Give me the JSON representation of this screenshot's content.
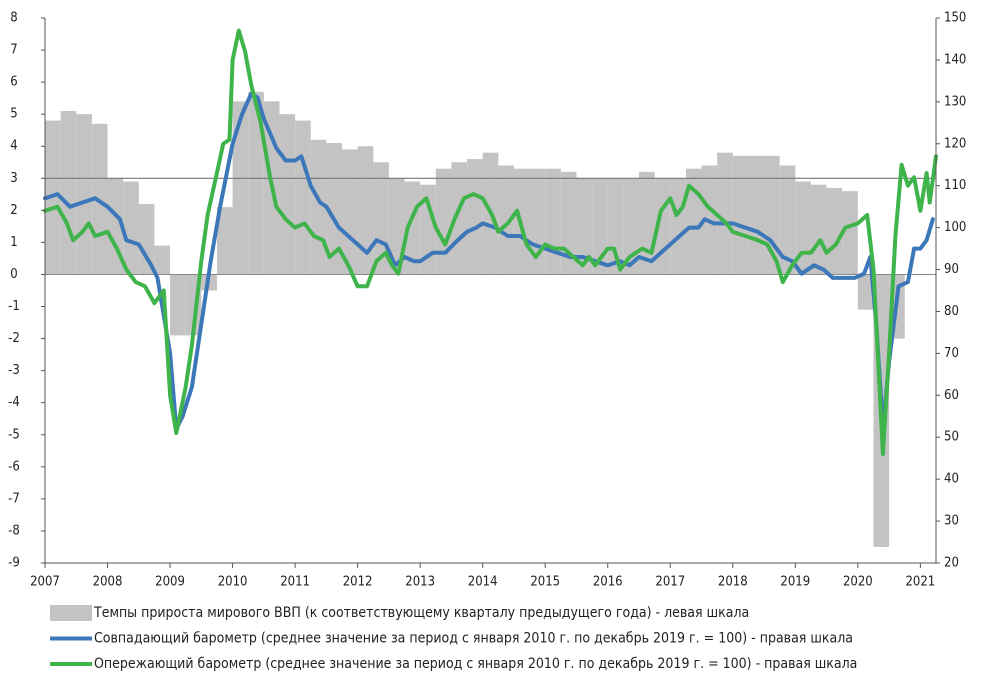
{
  "chart_data": {
    "type": "combo",
    "xlim": [
      2007,
      2021.25
    ],
    "xticks": [
      2007,
      2008,
      2009,
      2010,
      2011,
      2012,
      2013,
      2014,
      2015,
      2016,
      2017,
      2018,
      2019,
      2020,
      2021
    ],
    "ylim": [
      -9,
      8
    ],
    "yticks": [
      -9,
      -8,
      -7,
      -6,
      -5,
      -4,
      -3,
      -2,
      -1,
      0,
      1,
      2,
      3,
      4,
      5,
      6,
      7,
      8
    ],
    "y2lim": [
      20,
      150
    ],
    "y2ticks": [
      20,
      30,
      40,
      50,
      60,
      70,
      80,
      90,
      100,
      110,
      120,
      130,
      140,
      150
    ],
    "hline": 3,
    "grid": false,
    "legend": "bottom",
    "series": [
      {
        "name": "Темпы прироста мирового ВВП (к соответствующему кварталу предыдущего года) - левая шкала",
        "type": "bar",
        "color": "#c3c3c3",
        "x": [
          2007,
          2007.25,
          2007.5,
          2007.75,
          2008,
          2008.25,
          2008.5,
          2008.75,
          2009,
          2009.25,
          2009.5,
          2009.75,
          2010,
          2010.25,
          2010.5,
          2010.75,
          2011,
          2011.25,
          2011.5,
          2011.75,
          2012,
          2012.25,
          2012.5,
          2012.75,
          2013,
          2013.25,
          2013.5,
          2013.75,
          2014,
          2014.25,
          2014.5,
          2014.75,
          2015,
          2015.25,
          2015.5,
          2015.75,
          2016,
          2016.25,
          2016.5,
          2016.75,
          2017,
          2017.25,
          2017.5,
          2017.75,
          2018,
          2018.25,
          2018.5,
          2018.75,
          2019,
          2019.25,
          2019.5,
          2019.75,
          2020,
          2020.25,
          2020.5
        ],
        "values": [
          4.8,
          5.1,
          5.0,
          4.7,
          3.0,
          2.9,
          2.2,
          0.9,
          -1.9,
          -1.9,
          -0.5,
          2.1,
          5.4,
          5.7,
          5.4,
          5.0,
          4.8,
          4.2,
          4.1,
          3.9,
          4.0,
          3.5,
          3.0,
          2.9,
          2.8,
          3.3,
          3.5,
          3.6,
          3.8,
          3.4,
          3.3,
          3.3,
          3.3,
          3.2,
          3.0,
          3.0,
          3.0,
          3.0,
          3.2,
          3.0,
          3.0,
          3.3,
          3.4,
          3.8,
          3.7,
          3.7,
          3.7,
          3.4,
          2.9,
          2.8,
          2.7,
          2.6,
          -1.1,
          -8.5,
          -2.0
        ]
      },
      {
        "name": "Совпадающий барометр (среднее значение за период с января 2010 г. по декабрь 2019 г. = 100) - правая шкала",
        "type": "line",
        "axis": "y2",
        "color": "#3b77b9",
        "x": [
          2007,
          2007.2,
          2007.4,
          2007.6,
          2007.8,
          2008,
          2008.2,
          2008.3,
          2008.5,
          2008.7,
          2008.8,
          2009,
          2009.1,
          2009.2,
          2009.35,
          2009.5,
          2009.65,
          2009.8,
          2010,
          2010.15,
          2010.3,
          2010.4,
          2010.5,
          2010.7,
          2010.85,
          2011,
          2011.1,
          2011.25,
          2011.4,
          2011.5,
          2011.7,
          2011.85,
          2012,
          2012.15,
          2012.3,
          2012.45,
          2012.6,
          2012.75,
          2012.9,
          2013,
          2013.2,
          2013.4,
          2013.6,
          2013.75,
          2013.9,
          2014,
          2014.2,
          2014.4,
          2014.6,
          2014.8,
          2015,
          2015.2,
          2015.4,
          2015.6,
          2015.8,
          2016,
          2016.2,
          2016.35,
          2016.5,
          2016.7,
          2016.85,
          2017,
          2017.15,
          2017.3,
          2017.45,
          2017.55,
          2017.7,
          2017.9,
          2018,
          2018.2,
          2018.4,
          2018.6,
          2018.8,
          2018.95,
          2019.1,
          2019.3,
          2019.45,
          2019.6,
          2019.8,
          2019.95,
          2020.1,
          2020.2,
          2020.3,
          2020.4,
          2020.5,
          2020.65,
          2020.8,
          2020.9,
          2021,
          2021.1,
          2021.2
        ],
        "values": [
          107,
          108,
          105,
          106,
          107,
          105,
          102,
          97,
          96,
          91,
          88,
          70,
          52,
          55,
          62,
          77,
          92,
          105,
          120,
          127,
          132,
          131,
          126,
          119,
          116,
          116,
          117,
          110,
          106,
          105,
          100,
          98,
          96,
          94,
          97,
          96,
          91,
          93,
          92,
          92,
          94,
          94,
          97,
          99,
          100,
          101,
          100,
          98,
          98,
          96,
          95,
          94,
          93,
          93,
          92,
          91,
          92,
          91,
          93,
          92,
          94,
          96,
          98,
          100,
          100,
          102,
          101,
          101,
          101,
          100,
          99,
          97,
          93,
          92,
          89,
          91,
          90,
          88,
          88,
          88,
          89,
          93,
          76,
          52,
          68,
          86,
          87,
          95,
          95,
          97,
          102
        ]
      },
      {
        "name": "Опережающий барометр (среднее значение за период с января 2010 г. по декабрь 2019 г. = 100)  - правая шкала",
        "type": "line",
        "axis": "y2",
        "color": "#3fb44b",
        "x": [
          2007,
          2007.2,
          2007.35,
          2007.45,
          2007.6,
          2007.7,
          2007.8,
          2008,
          2008.15,
          2008.3,
          2008.45,
          2008.6,
          2008.75,
          2008.9,
          2009,
          2009.1,
          2009.25,
          2009.35,
          2009.5,
          2009.6,
          2009.75,
          2009.85,
          2009.95,
          2010,
          2010.1,
          2010.2,
          2010.3,
          2010.45,
          2010.6,
          2010.7,
          2010.85,
          2011,
          2011.15,
          2011.3,
          2011.45,
          2011.55,
          2011.7,
          2011.85,
          2012,
          2012.15,
          2012.3,
          2012.45,
          2012.55,
          2012.65,
          2012.8,
          2012.95,
          2013.1,
          2013.25,
          2013.4,
          2013.55,
          2013.7,
          2013.85,
          2014,
          2014.15,
          2014.25,
          2014.4,
          2014.55,
          2014.7,
          2014.85,
          2015,
          2015.15,
          2015.3,
          2015.45,
          2015.6,
          2015.7,
          2015.8,
          2016,
          2016.1,
          2016.2,
          2016.35,
          2016.55,
          2016.7,
          2016.85,
          2017,
          2017.1,
          2017.2,
          2017.3,
          2017.45,
          2017.6,
          2017.75,
          2017.9,
          2018,
          2018.2,
          2018.4,
          2018.55,
          2018.7,
          2018.8,
          2018.95,
          2019.1,
          2019.25,
          2019.4,
          2019.5,
          2019.65,
          2019.8,
          2020,
          2020.15,
          2020.25,
          2020.4,
          2020.5,
          2020.6,
          2020.7,
          2020.8,
          2020.9,
          2021,
          2021.1,
          2021.15,
          2021.25
        ],
        "values": [
          104,
          105,
          101,
          97,
          99,
          101,
          98,
          99,
          95,
          90,
          87,
          86,
          82,
          85,
          60,
          51,
          62,
          72,
          92,
          103,
          113,
          120,
          121,
          140,
          147,
          142,
          134,
          125,
          112,
          105,
          102,
          100,
          101,
          98,
          97,
          93,
          95,
          91,
          86,
          86,
          92,
          94,
          91,
          89,
          100,
          105,
          107,
          100,
          96,
          102,
          107,
          108,
          107,
          103,
          99,
          101,
          104,
          96,
          93,
          96,
          95,
          95,
          93,
          91,
          93,
          91,
          95,
          95,
          90,
          93,
          95,
          94,
          104,
          107,
          103,
          105,
          110,
          108,
          105,
          103,
          101,
          99,
          98,
          97,
          96,
          92,
          87,
          91,
          94,
          94,
          97,
          94,
          96,
          100,
          101,
          103,
          90,
          46,
          70,
          98,
          115,
          110,
          112,
          104,
          113,
          106,
          117
        ]
      }
    ]
  }
}
